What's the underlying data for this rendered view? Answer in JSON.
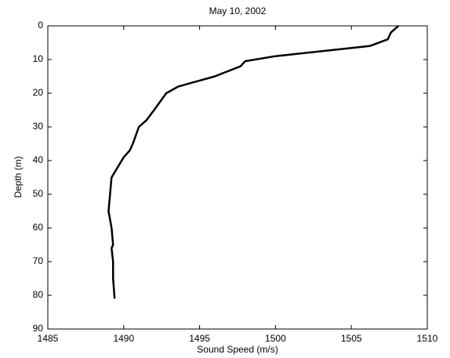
{
  "chart_data": {
    "type": "line",
    "title": "May 10, 2002",
    "x_label": "Sound Speed (m/s)",
    "y_label": "Depth (m)",
    "x": [
      1508.1,
      1507.6,
      1507.4,
      1506.2,
      1500,
      1498,
      1497.7,
      1496,
      1493.6,
      1492.8,
      1492,
      1491.5,
      1491,
      1490.6,
      1490.4,
      1490,
      1489.6,
      1489.2,
      1489.1,
      1489,
      1489.2,
      1489.3,
      1489.2,
      1489.3,
      1489.3,
      1489.4
    ],
    "series": [
      {
        "color": "#000000",
        "values": [
          0,
          2,
          4,
          6,
          9,
          10.5,
          12,
          15,
          18,
          20,
          25,
          28,
          30,
          35,
          37,
          39,
          42,
          45,
          50,
          55,
          60,
          65,
          66,
          70,
          75,
          81
        ]
      }
    ],
    "xlim": [
      1485,
      1510
    ],
    "xticks": [
      1485,
      1490,
      1495,
      1500,
      1505,
      1510
    ],
    "ylim": [
      0,
      90
    ],
    "yticks": [
      0,
      10,
      20,
      30,
      40,
      50,
      60,
      70,
      80,
      90
    ],
    "y_reversed": true,
    "grid": false
  }
}
